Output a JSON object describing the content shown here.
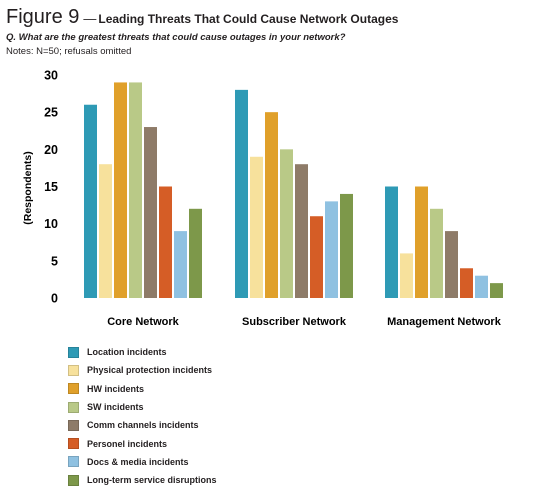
{
  "figure": {
    "label": "Figure 9",
    "dash": "—",
    "title": "Leading Threats That Could Cause Network Outages",
    "question": "Q. What are the greatest threats that could cause outages in your network?",
    "notes": "Notes: N=50; refusals omitted"
  },
  "chart_data": {
    "type": "bar",
    "categories": [
      "Core Network",
      "Subscriber Network",
      "Management Network"
    ],
    "ylabel": "(Respondents)",
    "xlabel": "",
    "ylim": [
      0,
      30
    ],
    "yticks": [
      0,
      5,
      10,
      15,
      20,
      25,
      30
    ],
    "grid": false,
    "legend_position": "bottom",
    "series": [
      {
        "name": "Location incidents",
        "color": "#2e9ab5",
        "values": [
          26,
          28,
          15
        ]
      },
      {
        "name": "Physical protection incidents",
        "color": "#f7e19c",
        "values": [
          18,
          19,
          6
        ]
      },
      {
        "name": "HW incidents",
        "color": "#e0a02a",
        "values": [
          29,
          25,
          15
        ]
      },
      {
        "name": "SW incidents",
        "color": "#b9c987",
        "values": [
          29,
          20,
          12
        ]
      },
      {
        "name": "Comm channels incidents",
        "color": "#8e7b68",
        "values": [
          23,
          18,
          9
        ]
      },
      {
        "name": "Personel incidents",
        "color": "#d55d26",
        "values": [
          15,
          11,
          4
        ]
      },
      {
        "name": "Docs & media incidents",
        "color": "#8fc1e1",
        "values": [
          9,
          13,
          3
        ]
      },
      {
        "name": "Long-term service disruptions",
        "color": "#7d984a",
        "values": [
          12,
          14,
          2
        ]
      }
    ]
  }
}
